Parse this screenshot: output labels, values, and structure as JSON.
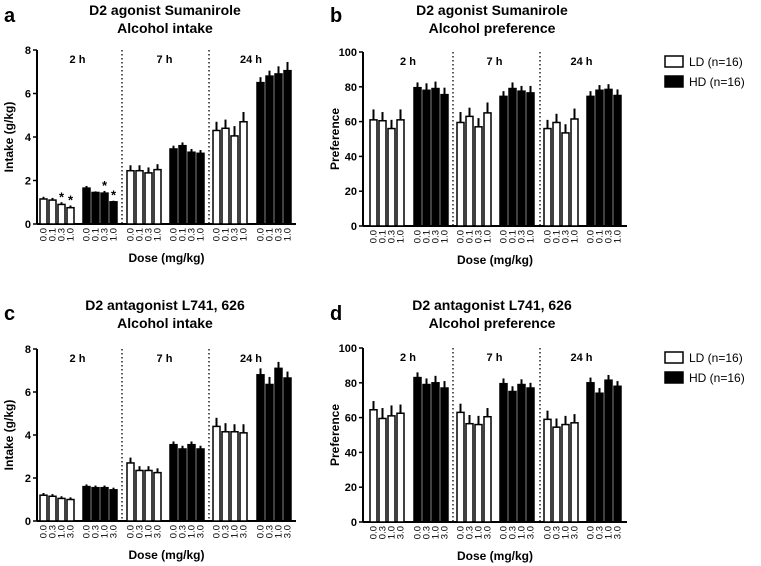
{
  "legend": [
    {
      "label": "LD (n=16)",
      "color": "#ffffff"
    },
    {
      "label": "HD (n=16)",
      "color": "#000000"
    }
  ],
  "chart_data": [
    {
      "panel": "a",
      "type": "bar",
      "title": [
        "D2 agonist Sumanirole",
        "Alcohol intake"
      ],
      "ylabel": "Intake (g/kg)",
      "xlabel": "Dose (mg/kg)",
      "ylim": [
        0,
        8
      ],
      "yticks": [
        0,
        2,
        4,
        6,
        8
      ],
      "time_groups": [
        "2 h",
        "7 h",
        "24 h"
      ],
      "doses": [
        "0.0",
        "0.1",
        "0.3",
        "1.0"
      ],
      "series": [
        {
          "name": "LD",
          "values": [
            [
              1.15,
              1.1,
              0.9,
              0.75
            ],
            [
              2.45,
              2.45,
              2.35,
              2.5
            ],
            [
              4.3,
              4.4,
              4.05,
              4.7
            ]
          ],
          "errors": [
            [
              0.1,
              0.1,
              0.1,
              0.1
            ],
            [
              0.25,
              0.25,
              0.25,
              0.25
            ],
            [
              0.4,
              0.4,
              0.45,
              0.45
            ]
          ],
          "significant": [
            [
              false,
              false,
              true,
              true
            ],
            [
              false,
              false,
              false,
              false
            ],
            [
              false,
              false,
              false,
              false
            ]
          ]
        },
        {
          "name": "HD",
          "values": [
            [
              1.65,
              1.45,
              1.42,
              1.02
            ],
            [
              3.45,
              3.6,
              3.3,
              3.25
            ],
            [
              6.5,
              6.8,
              6.9,
              7.05
            ]
          ],
          "errors": [
            [
              0.1,
              0.05,
              0.1,
              0.05
            ],
            [
              0.15,
              0.15,
              0.15,
              0.15
            ],
            [
              0.25,
              0.25,
              0.35,
              0.4
            ]
          ],
          "significant": [
            [
              false,
              false,
              true,
              true
            ],
            [
              false,
              false,
              false,
              false
            ],
            [
              false,
              false,
              false,
              false
            ]
          ]
        }
      ],
      "marker": "*"
    },
    {
      "panel": "b",
      "type": "bar",
      "title": [
        "D2 agonist Sumanirole",
        "Alcohol preference"
      ],
      "ylabel": "Preference",
      "xlabel": "Dose (mg/kg)",
      "ylim": [
        0,
        100
      ],
      "yticks": [
        0,
        20,
        40,
        60,
        80,
        100
      ],
      "time_groups": [
        "2 h",
        "7 h",
        "24 h"
      ],
      "doses": [
        "0.0",
        "0.1",
        "0.3",
        "1.0"
      ],
      "series": [
        {
          "name": "LD",
          "values": [
            [
              61,
              60.5,
              56,
              61
            ],
            [
              59.5,
              63,
              57,
              65
            ],
            [
              56,
              59.5,
              53.5,
              61.5
            ]
          ],
          "errors": [
            [
              6,
              5,
              5,
              6
            ],
            [
              6,
              5,
              5,
              6
            ],
            [
              5,
              5,
              5,
              6
            ]
          ]
        },
        {
          "name": "HD",
          "values": [
            [
              79.5,
              78,
              79,
              75.5
            ],
            [
              74.5,
              79,
              77.5,
              76.5
            ],
            [
              74.5,
              78,
              78.5,
              75
            ]
          ],
          "errors": [
            [
              3,
              4,
              4,
              4
            ],
            [
              3,
              3.5,
              3,
              4
            ],
            [
              3,
              3,
              3,
              3.5
            ]
          ]
        }
      ]
    },
    {
      "panel": "c",
      "type": "bar",
      "title": [
        "D2 antagonist L741, 626",
        "Alcohol intake"
      ],
      "ylabel": "Intake (g/kg)",
      "xlabel": "Dose (mg/kg)",
      "ylim": [
        0,
        8
      ],
      "yticks": [
        0,
        2,
        4,
        6,
        8
      ],
      "time_groups": [
        "2 h",
        "7 h",
        "24 h"
      ],
      "doses": [
        "0.0",
        "0.3",
        "1.0",
        "3.0"
      ],
      "series": [
        {
          "name": "LD",
          "values": [
            [
              1.2,
              1.15,
              1.05,
              1.0
            ],
            [
              2.7,
              2.35,
              2.35,
              2.25
            ],
            [
              4.4,
              4.15,
              4.15,
              4.1
            ]
          ],
          "errors": [
            [
              0.1,
              0.1,
              0.1,
              0.1
            ],
            [
              0.25,
              0.2,
              0.2,
              0.2
            ],
            [
              0.4,
              0.4,
              0.35,
              0.4
            ]
          ]
        },
        {
          "name": "HD",
          "values": [
            [
              1.6,
              1.55,
              1.55,
              1.45
            ],
            [
              3.55,
              3.35,
              3.55,
              3.35
            ],
            [
              6.8,
              6.35,
              7.1,
              6.65
            ]
          ],
          "errors": [
            [
              0.1,
              0.1,
              0.1,
              0.1
            ],
            [
              0.15,
              0.15,
              0.15,
              0.15
            ],
            [
              0.3,
              0.35,
              0.3,
              0.3
            ]
          ]
        }
      ]
    },
    {
      "panel": "d",
      "type": "bar",
      "title": [
        "D2 antagonist L741, 626",
        "Alcohol preference"
      ],
      "ylabel": "Preference",
      "xlabel": "Dose (mg/kg)",
      "ylim": [
        0,
        100
      ],
      "yticks": [
        0,
        20,
        40,
        60,
        80,
        100
      ],
      "time_groups": [
        "2 h",
        "7 h",
        "24 h"
      ],
      "doses": [
        "0.0",
        "0.3",
        "1.0",
        "3.0"
      ],
      "series": [
        {
          "name": "LD",
          "values": [
            [
              64.5,
              59.5,
              61,
              62.5
            ],
            [
              63,
              56.5,
              56,
              60.5
            ],
            [
              59,
              54.5,
              56,
              57
            ]
          ],
          "errors": [
            [
              5,
              6,
              6,
              5
            ],
            [
              5,
              5,
              5,
              5
            ],
            [
              5,
              5,
              5,
              5
            ]
          ]
        },
        {
          "name": "HD",
          "values": [
            [
              83,
              79,
              80,
              77
            ],
            [
              79.5,
              75,
              79,
              77
            ],
            [
              80,
              74,
              81.5,
              78
            ]
          ],
          "errors": [
            [
              3,
              3.5,
              4,
              4
            ],
            [
              3,
              3,
              3,
              3
            ],
            [
              3,
              3,
              3,
              3
            ]
          ]
        }
      ]
    }
  ]
}
